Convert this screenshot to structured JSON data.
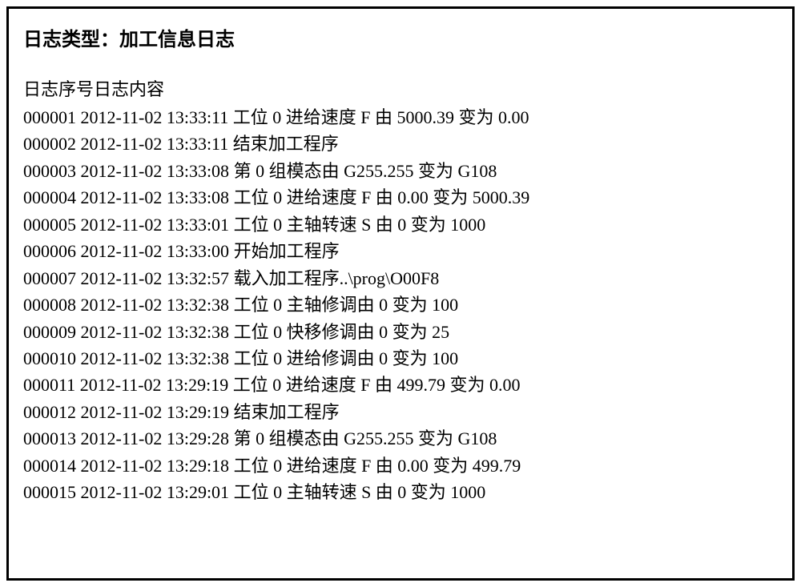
{
  "title": "日志类型：加工信息日志",
  "header": {
    "seq_label": "日志序号",
    "content_label": "日志内容"
  },
  "logs": [
    {
      "seq": "000001",
      "ts": "2012-11-02 13:33:11",
      "content": "工位 0 进给速度 F 由 5000.39 变为 0.00"
    },
    {
      "seq": "000002",
      "ts": "2012-11-02 13:33:11",
      "content": "结束加工程序"
    },
    {
      "seq": "000003",
      "ts": "2012-11-02 13:33:08",
      "content": "第 0 组模态由 G255.255 变为 G108"
    },
    {
      "seq": "000004",
      "ts": "2012-11-02 13:33:08",
      "content": "工位 0 进给速度 F 由 0.00 变为 5000.39"
    },
    {
      "seq": "000005",
      "ts": "2012-11-02 13:33:01",
      "content": "工位 0 主轴转速 S 由 0 变为 1000"
    },
    {
      "seq": "000006",
      "ts": "2012-11-02 13:33:00",
      "content": "开始加工程序"
    },
    {
      "seq": "000007",
      "ts": "2012-11-02 13:32:57",
      "content": "载入加工程序..\\prog\\O00F8"
    },
    {
      "seq": "000008",
      "ts": "2012-11-02 13:32:38",
      "content": "工位 0 主轴修调由 0 变为 100"
    },
    {
      "seq": "000009",
      "ts": "2012-11-02 13:32:38",
      "content": "工位 0 快移修调由 0 变为 25"
    },
    {
      "seq": "000010",
      "ts": "2012-11-02 13:32:38",
      "content": "工位 0 进给修调由 0 变为 100"
    },
    {
      "seq": "000011",
      "ts": "2012-11-02 13:29:19",
      "content": "工位 0 进给速度 F 由 499.79 变为 0.00"
    },
    {
      "seq": "000012",
      "ts": "2012-11-02 13:29:19",
      "content": "结束加工程序"
    },
    {
      "seq": "000013",
      "ts": "2012-11-02 13:29:28",
      "content": "第 0 组模态由 G255.255 变为 G108"
    },
    {
      "seq": "000014",
      "ts": "2012-11-02 13:29:18",
      "content": "工位 0 进给速度 F 由 0.00 变为 499.79"
    },
    {
      "seq": "000015",
      "ts": "2012-11-02 13:29:01",
      "content": "工位 0 主轴转速 S 由 0 变为 1000"
    }
  ],
  "style": {
    "border_color": "#000000",
    "background": "#ffffff",
    "text_color": "#000000",
    "font_family_cjk": "SimSun",
    "font_family_latin": "Times New Roman",
    "title_fontsize": 24,
    "row_fontsize": 22,
    "line_height": 1.52
  }
}
